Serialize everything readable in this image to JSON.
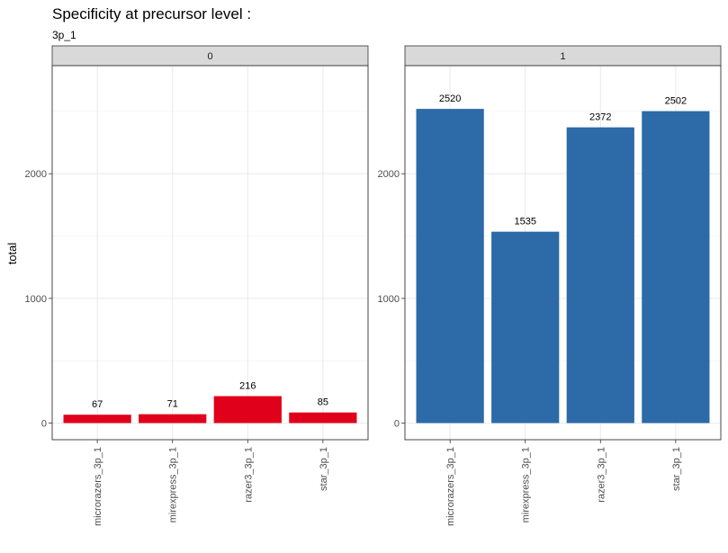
{
  "chart_data": {
    "type": "bar",
    "title": "Specificity at precursor level :",
    "subtitle": "3p_1",
    "ylabel": "total",
    "xlabel": "",
    "ylim": [
      0,
      2800
    ],
    "yticks": [
      0,
      1000,
      2000
    ],
    "grid": true,
    "categories": [
      "microrazers_3p_1",
      "mirexpress_3p_1",
      "razer3_3p_1",
      "star_3p_1"
    ],
    "facets": [
      {
        "label": "0",
        "color": "#e0001b",
        "values": [
          67,
          71,
          216,
          85
        ]
      },
      {
        "label": "1",
        "color": "#2c6aa8",
        "values": [
          2520,
          1535,
          2372,
          2502
        ]
      }
    ]
  }
}
